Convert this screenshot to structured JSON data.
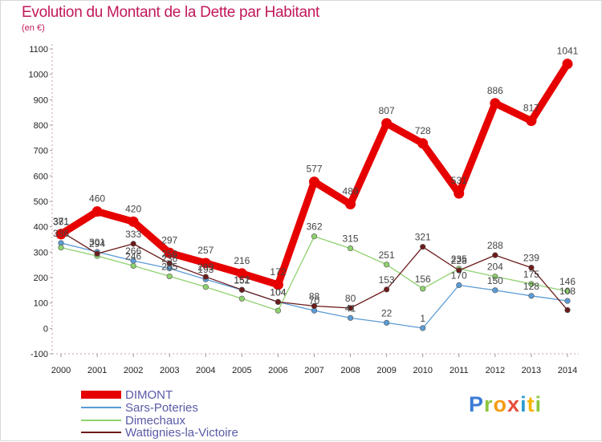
{
  "title": "Evolution du Montant de la Dette par Habitant",
  "unit": "(en €)",
  "logo": "Proxiti",
  "chart_data": {
    "type": "line",
    "x": [
      "2000",
      "2001",
      "2002",
      "2003",
      "2004",
      "2005",
      "2006",
      "2007",
      "2008",
      "2009",
      "2010",
      "2011",
      "2012",
      "2013",
      "2014"
    ],
    "ylim": [
      -100,
      1100
    ],
    "yticks": [
      -100,
      0,
      100,
      200,
      300,
      400,
      500,
      600,
      700,
      800,
      900,
      1000,
      1100
    ],
    "grid": false,
    "legend_placement": "bottom-left",
    "series": [
      {
        "name": "DIMONT",
        "color": "#e60000",
        "values": [
          371,
          460,
          420,
          297,
          257,
          216,
          172,
          577,
          489,
          807,
          728,
          531,
          886,
          817,
          1041
        ],
        "labels": [
          true,
          true,
          true,
          true,
          true,
          true,
          true,
          true,
          true,
          true,
          true,
          true,
          true,
          true,
          true
        ]
      },
      {
        "name": "Sars-Poteries",
        "color": "#5b9bd5",
        "values": [
          336,
          301,
          266,
          236,
          193,
          151,
          104,
          70,
          41,
          22,
          1,
          170,
          150,
          128,
          108
        ],
        "labels": [
          true,
          true,
          true,
          true,
          true,
          true,
          true,
          true,
          true,
          true,
          true,
          true,
          true,
          true,
          true
        ]
      },
      {
        "name": "Dimechaux",
        "color": "#8fd16f",
        "values": [
          318,
          285,
          246,
          205,
          163,
          117,
          70,
          362,
          315,
          251,
          156,
          235,
          204,
          175,
          146
        ],
        "labels": [
          false,
          false,
          true,
          true,
          false,
          false,
          false,
          true,
          true,
          true,
          true,
          true,
          true,
          true,
          true
        ]
      },
      {
        "name": "Wattignies-la-Victoire",
        "color": "#6b1b1b",
        "values": [
          381,
          294,
          333,
          256,
          203,
          152,
          104,
          88,
          80,
          153,
          321,
          228,
          288,
          239,
          72
        ],
        "labels": [
          true,
          true,
          true,
          true,
          true,
          true,
          true,
          true,
          true,
          true,
          true,
          true,
          true,
          true,
          false
        ]
      }
    ]
  }
}
